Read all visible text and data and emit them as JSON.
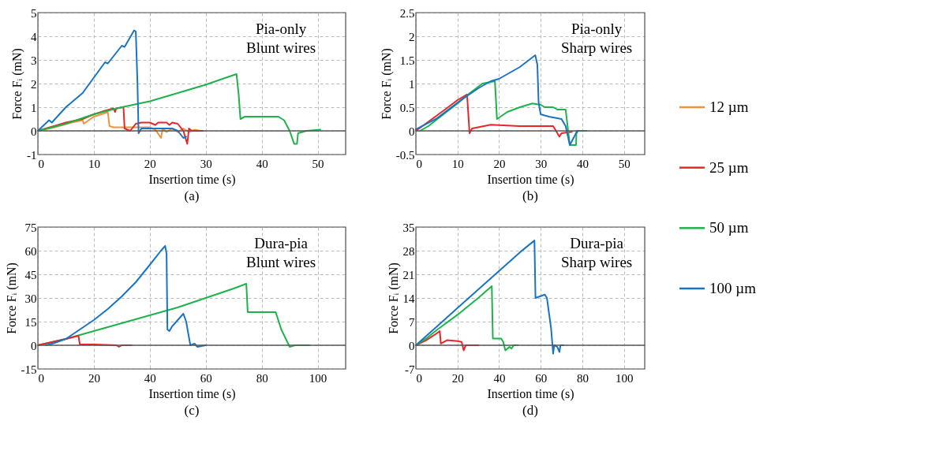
{
  "chart_data": [
    {
      "type": "line",
      "title": "(a)",
      "annotations": [
        "Pia-only",
        "Blunt wires"
      ],
      "xlabel": "Insertion time (s)",
      "ylabel": "Force Fᵢ (mN)",
      "xlim": [
        0,
        55
      ],
      "xticks": [
        0,
        10,
        20,
        30,
        40,
        50
      ],
      "ylim": [
        -1,
        5
      ],
      "yticks": [
        -1,
        0,
        1,
        2,
        3,
        4,
        5
      ],
      "grid": true,
      "legend": "right",
      "ref_lines": [
        {
          "axis": "y",
          "value": 0,
          "color": "#595959"
        }
      ],
      "series": [
        {
          "name": "12 µm",
          "color": "#f4913c",
          "x": [
            0,
            3,
            6,
            8,
            8.2,
            10,
            12,
            12.5,
            12.8,
            13.5,
            15,
            20,
            21,
            22,
            22.3,
            23,
            24,
            25,
            26,
            27,
            28,
            29
          ],
          "values": [
            0,
            0.15,
            0.35,
            0.45,
            0.3,
            0.6,
            0.75,
            0.8,
            0.2,
            0.15,
            0.15,
            0.15,
            0.05,
            -0.3,
            0.1,
            -0.05,
            0.1,
            -0.05,
            0.1,
            -0.05,
            0.05,
            0
          ]
        },
        {
          "name": "25 µm",
          "color": "#e8262a",
          "x": [
            0,
            5,
            8,
            10,
            12,
            13.5,
            13.8,
            14,
            15.3,
            15.5,
            16.5,
            17.5,
            18.5,
            20,
            21,
            21.5,
            23,
            23.5,
            24,
            25,
            26,
            26.7,
            27,
            27.5,
            29.5
          ],
          "values": [
            0,
            0.35,
            0.5,
            0.7,
            0.85,
            0.95,
            0.8,
            0.95,
            1.0,
            0.1,
            0,
            0.3,
            0.35,
            0.35,
            0.25,
            0.35,
            0.35,
            0.25,
            0.35,
            0.3,
            0,
            -0.55,
            0.1,
            0,
            0
          ]
        },
        {
          "name": "50 µm",
          "color": "#1db34a",
          "x": [
            0,
            5,
            10,
            15,
            20,
            25,
            30,
            33,
            35.5,
            35.9,
            36.2,
            37,
            43,
            44,
            45,
            45.8,
            46.3,
            46.5,
            48,
            50.5
          ],
          "values": [
            0,
            0.3,
            0.7,
            1.0,
            1.25,
            1.6,
            1.95,
            2.2,
            2.4,
            1.5,
            0.5,
            0.6,
            0.6,
            0.45,
            0,
            -0.55,
            -0.55,
            -0.1,
            0,
            0.05
          ]
        },
        {
          "name": "100 µm",
          "color": "#1a74c4",
          "x": [
            0,
            2,
            2.5,
            5,
            8,
            10,
            12,
            12.5,
            15,
            15.5,
            17.2,
            17.5,
            17.8,
            18,
            18.5,
            20,
            24,
            25,
            26,
            26.5
          ],
          "values": [
            0,
            0.45,
            0.35,
            1.0,
            1.6,
            2.25,
            2.9,
            2.85,
            3.6,
            3.55,
            4.25,
            4.2,
            2,
            -0.1,
            0.1,
            0.1,
            0.1,
            0,
            -0.3,
            -0.25
          ]
        }
      ]
    },
    {
      "type": "line",
      "title": "(b)",
      "annotations": [
        "Pia-only",
        "Sharp wires"
      ],
      "xlabel": "Insertion time (s)",
      "ylabel": "Force Fᵢ (mN)",
      "xlim": [
        0,
        55
      ],
      "xticks": [
        0,
        10,
        20,
        30,
        40,
        50
      ],
      "ylim": [
        -0.5,
        2.5
      ],
      "yticks": [
        -0.5,
        0,
        0.5,
        1,
        1.5,
        2,
        2.5
      ],
      "grid": true,
      "legend": "right",
      "ref_lines": [
        {
          "axis": "y",
          "value": 0,
          "color": "#595959"
        }
      ],
      "series": [
        {
          "name": "25 µm",
          "color": "#e8262a",
          "x": [
            0,
            7,
            10,
            12.3,
            12.5,
            12.9,
            13.5,
            18,
            25,
            33,
            34.5,
            35,
            37.5
          ],
          "values": [
            0,
            0.45,
            0.65,
            0.77,
            0.5,
            -0.05,
            0.05,
            0.13,
            0.1,
            0.1,
            -0.12,
            -0.05,
            -0.02
          ]
        },
        {
          "name": "50 µm",
          "color": "#1db34a",
          "x": [
            1,
            3,
            10,
            13,
            16,
            19,
            19.5,
            22,
            25,
            28,
            30,
            31,
            33,
            34,
            36,
            37,
            38.5,
            38.6,
            41
          ],
          "values": [
            0,
            0.1,
            0.58,
            0.8,
            1.0,
            1.05,
            0.25,
            0.4,
            0.5,
            0.58,
            0.55,
            0.5,
            0.5,
            0.45,
            0.45,
            -0.3,
            -0.3,
            0,
            0
          ]
        },
        {
          "name": "100 µm",
          "color": "#1a74c4",
          "x": [
            0,
            5,
            11,
            15,
            18,
            20,
            25,
            28.7,
            29.2,
            29.5,
            30,
            32,
            35,
            36,
            37,
            38.5,
            39
          ],
          "values": [
            0.03,
            0.26,
            0.66,
            0.9,
            1.05,
            1.1,
            1.35,
            1.6,
            1.4,
            0.6,
            0.35,
            0.3,
            0.25,
            0.1,
            -0.3,
            -0.05,
            0
          ]
        }
      ]
    },
    {
      "type": "line",
      "title": "(c)",
      "annotations": [
        "Dura-pia",
        "Blunt wires"
      ],
      "xlabel": "Insertion time (s)",
      "ylabel": "Force Fᵢ (mN)",
      "xlim": [
        0,
        110
      ],
      "xticks": [
        0,
        20,
        40,
        60,
        80,
        100
      ],
      "ylim": [
        -15,
        75
      ],
      "yticks": [
        -15,
        0,
        15,
        30,
        45,
        60,
        75
      ],
      "grid": true,
      "legend": "right",
      "ref_lines": [
        {
          "axis": "y",
          "value": 0,
          "color": "#595959"
        }
      ],
      "series": [
        {
          "name": "50 µm",
          "color": "#1db34a",
          "x": [
            0,
            10,
            20,
            30,
            40,
            50,
            60,
            70,
            74.5,
            75,
            85,
            87,
            90,
            92,
            97
          ],
          "values": [
            0,
            4,
            9,
            14,
            19,
            24,
            30,
            36,
            39,
            21,
            21,
            10,
            -1,
            0,
            0
          ]
        },
        {
          "name": "25 µm",
          "color": "#e8262a",
          "x": [
            0,
            5,
            10,
            14.5,
            15,
            20,
            28,
            29,
            30,
            33.5
          ],
          "values": [
            0,
            2,
            4,
            6,
            0.5,
            0.5,
            0,
            -1,
            0,
            0
          ]
        },
        {
          "name": "100 µm",
          "color": "#1a74c4",
          "x": [
            3,
            6,
            10,
            15,
            20,
            25,
            30,
            35,
            40,
            44,
            45.5,
            46,
            46.3,
            47,
            48,
            52,
            53,
            54.5,
            56,
            57,
            60
          ],
          "values": [
            0,
            1.5,
            4,
            10,
            16,
            23,
            31,
            40,
            51,
            60,
            63,
            58,
            10,
            9,
            12,
            20,
            15,
            0,
            1,
            -1,
            0
          ]
        }
      ]
    },
    {
      "type": "line",
      "title": "(d)",
      "annotations": [
        "Dura-pia",
        "Sharp wires"
      ],
      "xlabel": "Insertion time (s)",
      "ylabel": "Force Fᵢ (mN)",
      "xlim": [
        0,
        110
      ],
      "xticks": [
        0,
        20,
        40,
        60,
        80,
        100
      ],
      "ylim": [
        -7,
        35
      ],
      "yticks": [
        -7,
        0,
        7,
        14,
        21,
        28,
        35
      ],
      "grid": true,
      "legend": "right",
      "ref_lines": [
        {
          "axis": "y",
          "value": 0,
          "color": "#595959"
        }
      ],
      "series": [
        {
          "name": "25 µm",
          "color": "#e8262a",
          "x": [
            0,
            5,
            10,
            11.5,
            12,
            15,
            20,
            22,
            23,
            24,
            30
          ],
          "values": [
            0,
            1.5,
            3.5,
            4.2,
            0.5,
            1.5,
            1.2,
            1,
            -1.5,
            0,
            0
          ]
        },
        {
          "name": "50 µm",
          "color": "#1db34a",
          "x": [
            0,
            5,
            10,
            20,
            30,
            36.5,
            37,
            41,
            42,
            43,
            45,
            46,
            47,
            49
          ],
          "values": [
            0,
            2,
            4.5,
            9,
            14,
            17.5,
            2,
            2,
            1,
            -1.5,
            -0.5,
            -1,
            0,
            0
          ]
        },
        {
          "name": "100 µm",
          "color": "#1a74c4",
          "x": [
            0,
            10,
            20,
            30,
            40,
            50,
            57,
            57.5,
            62,
            63,
            65,
            66,
            66.5,
            68,
            69,
            69.5,
            71
          ],
          "values": [
            0,
            5.5,
            11,
            16.5,
            22,
            27.5,
            31,
            14,
            15,
            14,
            5,
            -2.5,
            0,
            -0.5,
            -2,
            0,
            0
          ]
        }
      ]
    }
  ]
}
